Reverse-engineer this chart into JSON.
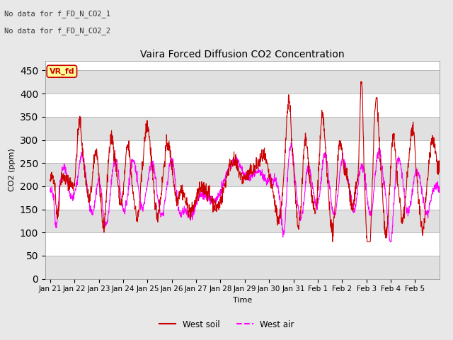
{
  "title": "Vaira Forced Diffusion CO2 Concentration",
  "ylabel": "CO2 (ppm)",
  "xlabel": "Time",
  "ylim": [
    0,
    470
  ],
  "yticks": [
    0,
    50,
    100,
    150,
    200,
    250,
    300,
    350,
    400,
    450
  ],
  "annotations": [
    "No data for f_FD_N_CO2_1",
    "No data for f_FD_N_CO2_2"
  ],
  "legend_entries": [
    "West soil",
    "West air"
  ],
  "legend_colors": [
    "#cc0000",
    "#ff00ff"
  ],
  "soil_color": "#cc0000",
  "air_color": "#ff00ff",
  "tag_text": "VR_fd",
  "tag_facecolor": "#ffff99",
  "tag_edgecolor": "#cc0000",
  "bg_color": "#e8e8e8",
  "plot_bg_light": "#ffffff",
  "plot_bg_dark": "#e0e0e0",
  "grid_color": "#cccccc",
  "date_labels": [
    "Jan 21",
    "Jan 22",
    "Jan 23",
    "Jan 24",
    "Jan 25",
    "Jan 26",
    "Jan 27",
    "Jan 28",
    "Jan 29",
    "Jan 30",
    "Jan 31",
    "Feb 1",
    "Feb 2",
    "Feb 3",
    "Feb 4",
    "Feb 5"
  ],
  "figsize": [
    6.4,
    4.8
  ],
  "dpi": 100
}
